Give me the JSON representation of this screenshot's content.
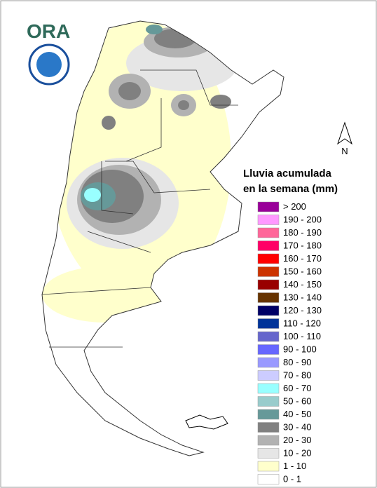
{
  "logo": {
    "text": "ORA"
  },
  "north_arrow": {
    "label": "N"
  },
  "legend": {
    "title": [
      "Lluvia acumulada",
      "en la semana (mm)"
    ],
    "items": [
      {
        "label": "> 200",
        "color": "#990099"
      },
      {
        "label": "190 - 200",
        "color": "#ff99ff"
      },
      {
        "label": "180 - 190",
        "color": "#ff6699"
      },
      {
        "label": "170 - 180",
        "color": "#ff0066"
      },
      {
        "label": "160 - 170",
        "color": "#ff0000"
      },
      {
        "label": "150 - 160",
        "color": "#cc3300"
      },
      {
        "label": "140 - 150",
        "color": "#990000"
      },
      {
        "label": "130 - 140",
        "color": "#663300"
      },
      {
        "label": "120 - 130",
        "color": "#000066"
      },
      {
        "label": "110 - 120",
        "color": "#003399"
      },
      {
        "label": "100 - 110",
        "color": "#6666cc"
      },
      {
        "label": "90 - 100",
        "color": "#6666ff"
      },
      {
        "label": "80 - 90",
        "color": "#9999ff"
      },
      {
        "label": "70 - 80",
        "color": "#ccccff"
      },
      {
        "label": "60 - 70",
        "color": "#99ffff"
      },
      {
        "label": "50 - 60",
        "color": "#99cccc"
      },
      {
        "label": "40 - 50",
        "color": "#669999"
      },
      {
        "label": "30 - 40",
        "color": "#808080"
      },
      {
        "label": "20 - 30",
        "color": "#b2b2b2"
      },
      {
        "label": "10 - 20",
        "color": "#e6e6e6"
      },
      {
        "label": "1 - 10",
        "color": "#ffffcc"
      },
      {
        "label": "0 - 1",
        "color": "#ffffff"
      }
    ]
  }
}
